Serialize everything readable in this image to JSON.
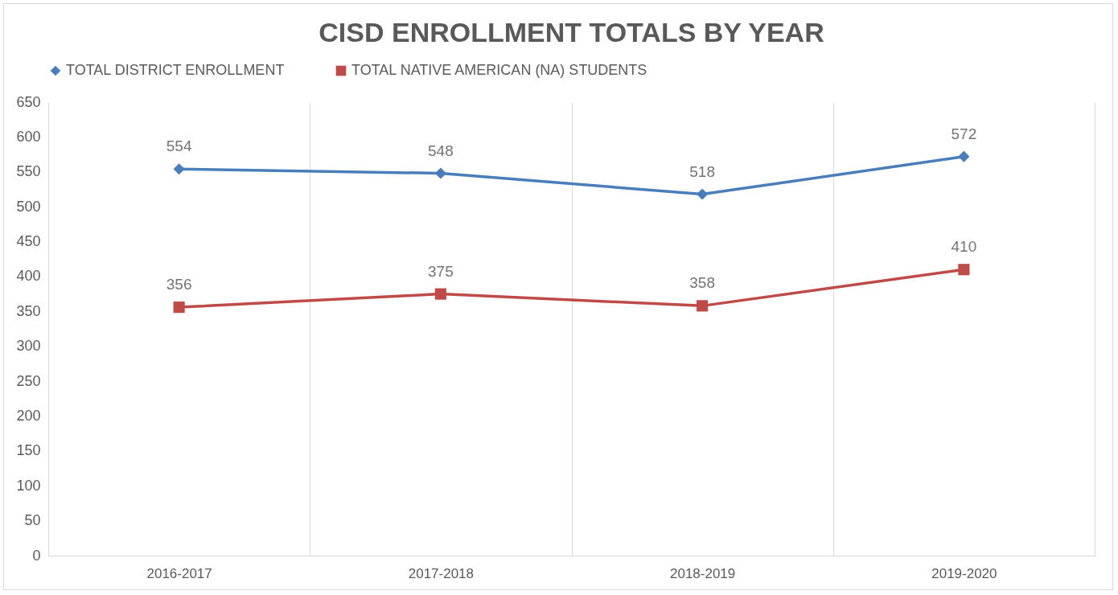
{
  "chart_data": {
    "type": "line",
    "title": "CISD ENROLLMENT TOTALS BY YEAR",
    "categories": [
      "2016-2017",
      "2017-2018",
      "2018-2019",
      "2019-2020"
    ],
    "series": [
      {
        "name": "TOTAL DISTRICT ENROLLMENT",
        "color": "#4a7ebb",
        "marker": "diamond",
        "values": [
          554,
          548,
          518,
          572
        ]
      },
      {
        "name": "TOTAL NATIVE AMERICAN (NA) STUDENTS",
        "color": "#be4b48",
        "marker": "square",
        "values": [
          356,
          375,
          358,
          410
        ]
      }
    ],
    "ylim": [
      0,
      650
    ],
    "yticks": [
      0,
      50,
      100,
      150,
      200,
      250,
      300,
      350,
      400,
      450,
      500,
      550,
      600,
      650
    ],
    "grid": "x",
    "legend": "top",
    "data_labels": true,
    "line_style": "solid"
  }
}
